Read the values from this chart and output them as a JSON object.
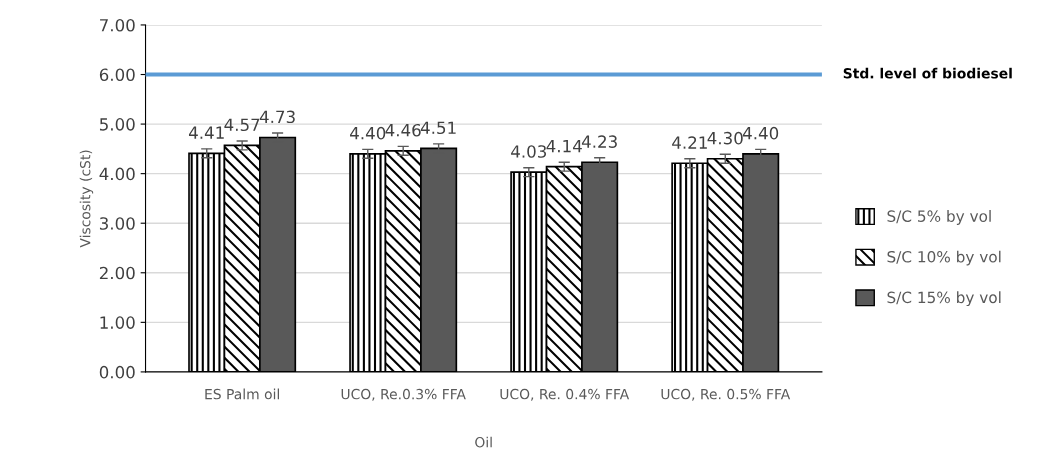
{
  "chart_data": {
    "type": "bar",
    "xlabel": "Oil",
    "ylabel": "Viscosity (cSt)",
    "categories": [
      "ES Palm oil",
      "UCO, Re.0.3% FFA",
      "UCO, Re. 0.4% FFA",
      "UCO, Re. 0.5% FFA"
    ],
    "series": [
      {
        "name": "S/C 5% by vol",
        "color": "#000000",
        "values": [
          4.41,
          4.4,
          4.03,
          4.21
        ],
        "errors": [
          0.09,
          0.09,
          0.09,
          0.09
        ],
        "value_labels": [
          "4.41",
          "4.40",
          "4.03",
          "4.21"
        ]
      },
      {
        "name": "S/C 10% by vol",
        "color": "#000000",
        "values": [
          4.57,
          4.46,
          4.14,
          4.3
        ],
        "errors": [
          0.09,
          0.09,
          0.09,
          0.09
        ],
        "value_labels": [
          "4.57",
          "4.46",
          "4.14",
          "4.30"
        ]
      },
      {
        "name": "S/C 15% by vol",
        "color": "#595959",
        "values": [
          4.73,
          4.51,
          4.23,
          4.4
        ],
        "errors": [
          0.09,
          0.09,
          0.09,
          0.09
        ],
        "value_labels": [
          "4.73",
          "4.51",
          "4.23",
          "4.40"
        ]
      }
    ],
    "ylim": [
      0,
      7
    ],
    "yticks": [
      {
        "value": 0,
        "label": "0.00"
      },
      {
        "value": 1,
        "label": "1.00"
      },
      {
        "value": 2,
        "label": "2.00"
      },
      {
        "value": 3,
        "label": "3.00"
      },
      {
        "value": 4,
        "label": "4.00"
      },
      {
        "value": 5,
        "label": "5.00"
      },
      {
        "value": 6,
        "label": "6.00"
      },
      {
        "value": 7,
        "label": "7.00"
      }
    ],
    "ref_lines": [
      {
        "axis": "y",
        "value": 6,
        "label": "Std. level of biodiesel",
        "color": "#5b9bd5"
      }
    ],
    "grid": "y",
    "legend": "right"
  }
}
